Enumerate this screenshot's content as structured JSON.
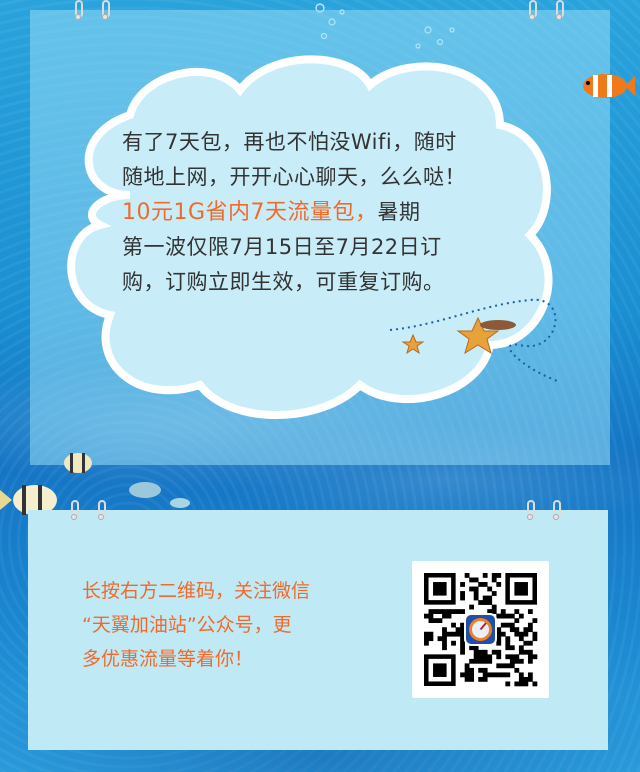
{
  "cloud": {
    "line1": "有了7天包，再也不怕没Wifi，随时",
    "line2": "随地上网，开开心心聊天，么么哒！",
    "highlight": "10元1G省内7天流量包，",
    "line3_rest": "暑期",
    "line4": "第一波仅限7月15日至7月22日订",
    "line5": "购，订购立即生效，可重复订购。"
  },
  "promo": {
    "line1": "长按右方二维码，关注微信",
    "line2": "“天翼加油站”公众号，更",
    "line3": "多优惠流量等着你！"
  },
  "colors": {
    "highlight": "#f26a2a",
    "body_text": "#333333",
    "ocean": "#1a8fd2",
    "panel": "#bfe9f5"
  },
  "icons": {
    "qr": "qr-code-icon",
    "qr_center_logo": "speedometer-app-icon"
  }
}
